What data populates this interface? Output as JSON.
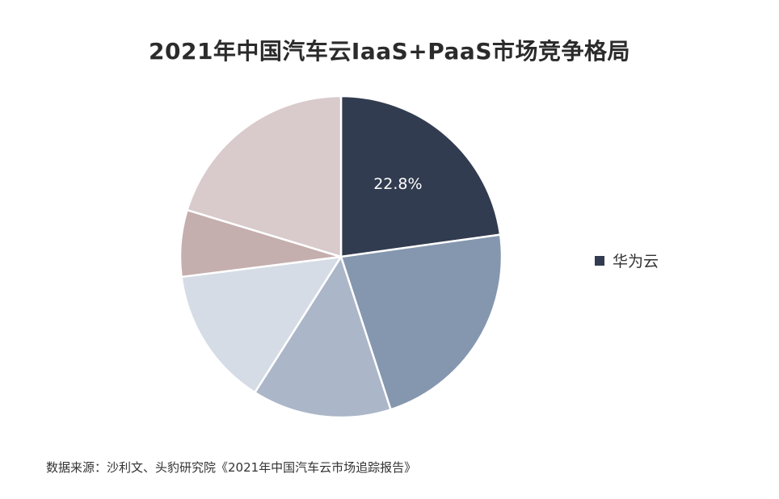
{
  "chart_data": {
    "type": "pie",
    "title": "2021年中国汽车云IaaS+PaaS市场竞争格局",
    "slices": [
      {
        "label": "华为云",
        "value": 22.8,
        "value_label": "22.8%",
        "color": "#323c50"
      },
      {
        "label": "",
        "value": 22.2,
        "value_label": "",
        "color": "#8597af"
      },
      {
        "label": "",
        "value": 14.0,
        "value_label": "",
        "color": "#abb6c8"
      },
      {
        "label": "",
        "value": 14.0,
        "value_label": "",
        "color": "#d5dce6"
      },
      {
        "label": "",
        "value": 6.7,
        "value_label": "",
        "color": "#c5aeae"
      },
      {
        "label": "",
        "value": 20.3,
        "value_label": "",
        "color": "#d9cacb"
      }
    ],
    "legend": {
      "placement": "right",
      "entries": [
        {
          "label": "华为云",
          "color": "#323c50"
        }
      ]
    },
    "source": "数据来源：沙利文、头豹研究院《2021年中国汽车云市场追踪报告》"
  }
}
